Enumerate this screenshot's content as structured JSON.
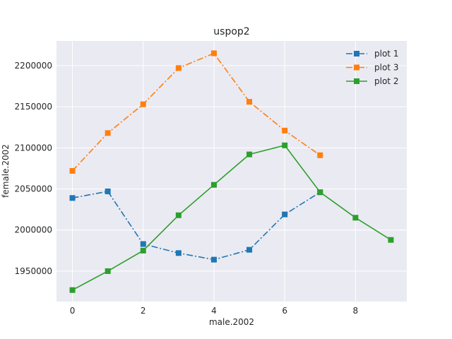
{
  "chart_data": {
    "type": "line",
    "title": "uspop2",
    "xlabel": "male.2002",
    "ylabel": "female.2002",
    "xlim": [
      -0.45,
      9.45
    ],
    "ylim": [
      1913000,
      2230000
    ],
    "xticks": [
      0,
      2,
      4,
      6,
      8
    ],
    "yticks": [
      1950000,
      2000000,
      2050000,
      2100000,
      2150000,
      2200000
    ],
    "grid": true,
    "legend_position": "top-right",
    "series": [
      {
        "name": "plot 1",
        "color": "#1f77b4",
        "linestyle": "dashdot",
        "marker": "square",
        "x": [
          0,
          1,
          2,
          3,
          4,
          5,
          6,
          7
        ],
        "y": [
          2039000,
          2047000,
          1983000,
          1972000,
          1964000,
          1976000,
          2019000,
          2046000
        ]
      },
      {
        "name": "plot 3",
        "color": "#ff7f0e",
        "linestyle": "dashdot",
        "marker": "square",
        "x": [
          0,
          1,
          2,
          3,
          4,
          5,
          6,
          7
        ],
        "y": [
          2072000,
          2118000,
          2153000,
          2197000,
          2215000,
          2156000,
          2121000,
          2091000
        ]
      },
      {
        "name": "plot 2",
        "color": "#2ca02c",
        "linestyle": "solid",
        "marker": "square",
        "x": [
          0,
          1,
          2,
          3,
          4,
          5,
          6,
          7,
          8,
          9
        ],
        "y": [
          1927000,
          1950000,
          1975000,
          2018000,
          2055000,
          2092000,
          2103000,
          2046000,
          2015000,
          1988000
        ]
      }
    ]
  }
}
